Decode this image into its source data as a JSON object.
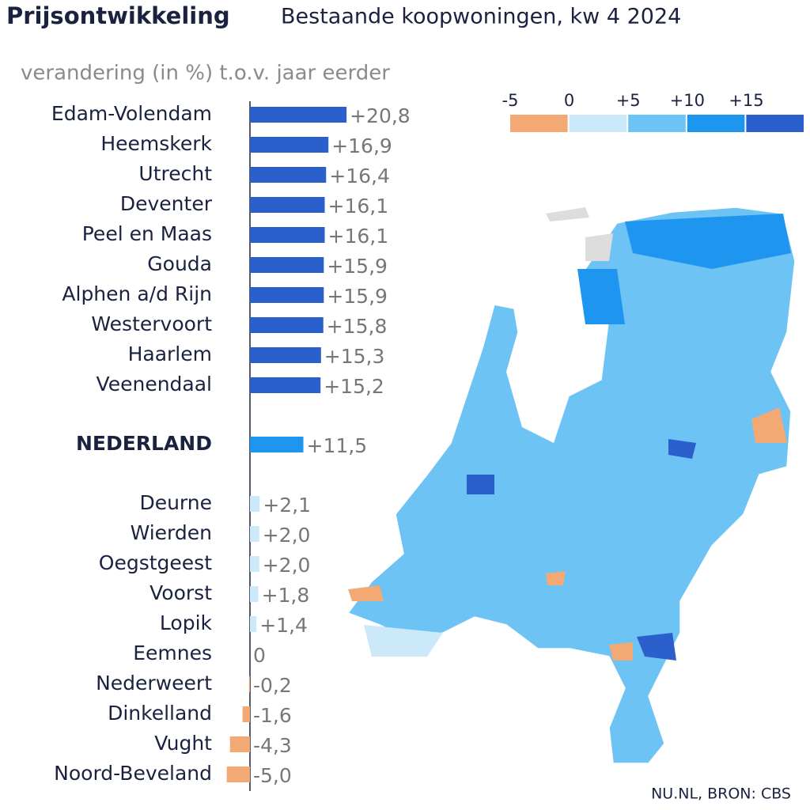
{
  "chart_data": {
    "type": "bar",
    "title": "Prijsontwikkeling",
    "subtitle": "Bestaande koopwoningen, kw 4 2024",
    "axis_label": "verandering (in %) t.o.v. jaar eerder",
    "source": "NU.NL, BRON: CBS",
    "categories": [
      "Edam-Volendam",
      "Heemskerk",
      "Utrecht",
      "Deventer",
      "Peel en Maas",
      "Gouda",
      "Alphen a/d Rijn",
      "Westervoort",
      "Haarlem",
      "Veenendaal",
      "NEDERLAND",
      "Deurne",
      "Wierden",
      "Oegstgeest",
      "Voorst",
      "Lopik",
      "Eemnes",
      "Nederweert",
      "Dinkelland",
      "Vught",
      "Noord-Beveland"
    ],
    "values": [
      20.8,
      16.9,
      16.4,
      16.1,
      16.1,
      15.9,
      15.9,
      15.8,
      15.3,
      15.2,
      11.5,
      2.1,
      2.0,
      2.0,
      1.8,
      1.4,
      0,
      -0.2,
      -1.6,
      -4.3,
      -5.0
    ],
    "value_labels": [
      "+20,8",
      "+16,9",
      "+16,4",
      "+16,1",
      "+16,1",
      "+15,9",
      "+15,9",
      "+15,8",
      "+15,3",
      "+15,2",
      "+11,5",
      "+2,1",
      "+2,0",
      "+2,0",
      "+1,8",
      "+1,4",
      "0",
      "-0,2",
      "-1,6",
      "-4,3",
      "-5,0"
    ],
    "legend": {
      "ticks": [
        {
          "value": -5,
          "label": "-5"
        },
        0,
        {
          "value": 5,
          "label": "+5"
        },
        {
          "value": 10,
          "label": "+10"
        },
        {
          "value": 15,
          "label": "+15"
        }
      ],
      "colors": [
        "#f2a973",
        "#cce9fa",
        "#6ec3f5",
        "#1e96ef",
        "#2b5fcc"
      ]
    }
  }
}
